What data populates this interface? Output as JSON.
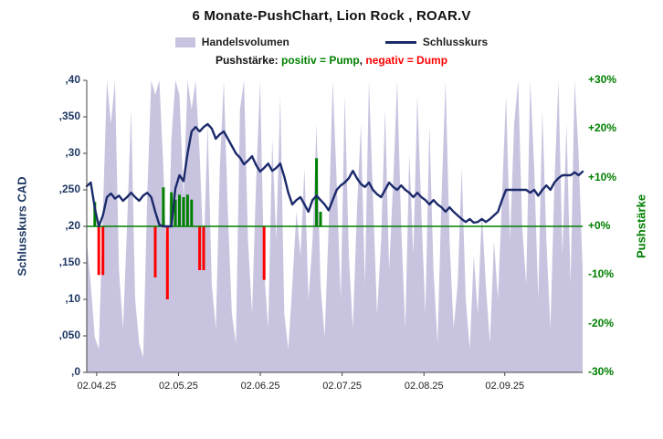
{
  "title": "6 Monate-PushChart,  Lion Rock , ROAR.V",
  "legend": {
    "volume_label": "Handelsvolumen",
    "close_label": "Schlusskurs",
    "push_prefix": "Pushstärke:",
    "push_positive": "positiv = Pump",
    "separator": ",",
    "push_negative": "negativ = Dump"
  },
  "axes": {
    "left_title": "Schlusskurs CAD",
    "right_title": "Pushstärke",
    "left_ticks": [
      ",40",
      ",350",
      ",30",
      ",250",
      ",20",
      ",150",
      ",10",
      ",050",
      ",0"
    ],
    "left_tick_values": [
      0.4,
      0.35,
      0.3,
      0.25,
      0.2,
      0.15,
      0.1,
      0.05,
      0.0
    ],
    "right_ticks": [
      "+30%",
      "+20%",
      "+10%",
      "+0%",
      "-10%",
      "-20%",
      "-30%"
    ],
    "right_tick_values": [
      30,
      20,
      10,
      0,
      -10,
      -20,
      -30
    ],
    "x_ticks": [
      "02.04.25",
      "02.05.25",
      "02.06.25",
      "02.07.25",
      "02.08.25",
      "02.09.25"
    ],
    "x_tick_pos": [
      0.02,
      0.185,
      0.35,
      0.515,
      0.68,
      0.843
    ]
  },
  "colors": {
    "line": "#1b2a6b",
    "axis_text_left": "#1f3864",
    "volume": "#c8c4e0",
    "positive": "#008000",
    "negative": "#ff0000",
    "xtick_text": "#222222"
  },
  "chart_data": [
    {
      "type": "area",
      "name": "Handelsvolumen",
      "yaxis": "hidden",
      "values_relative": [
        0.45,
        0.3,
        0.12,
        0.08,
        0.55,
        1,
        0.85,
        1,
        0.35,
        0.15,
        0.5,
        0.9,
        0.25,
        0.1,
        0.05,
        0.6,
        1,
        0.95,
        1,
        0.7,
        0.3,
        0.8,
        1,
        0.95,
        0.6,
        1,
        0.9,
        1,
        0.75,
        0.4,
        0.85,
        0.3,
        0.15,
        0.7,
        1,
        0.55,
        0.2,
        0.1,
        0.9,
        1,
        0.45,
        0.2,
        0.65,
        1,
        0.35,
        0.15,
        0.8,
        0.45,
        0.95,
        0.2,
        0.08,
        0.3,
        0.55,
        0.4,
        0.7,
        0.25,
        0.45,
        0.85,
        0.3,
        0.12,
        0.5,
        1,
        0.65,
        0.25,
        0.95,
        0.4,
        0.15,
        0.55,
        0.85,
        0.3,
        1,
        0.6,
        0.2,
        0.45,
        0.9,
        0.35,
        0.65,
        1,
        0.5,
        0.15,
        0.75,
        0.4,
        0.95,
        0.55,
        0.2,
        0.85,
        0.35,
        0.1,
        0.6,
        1,
        0.45,
        0.15,
        0.3,
        0.7,
        0.25,
        0.08,
        0.4,
        0.2,
        0.55,
        0.3,
        0.1,
        0.45,
        0.25,
        0.6,
        0.95,
        0.45,
        0.85,
        1,
        0.5,
        0.3,
        1,
        0.7,
        0.25,
        0.9,
        0.45,
        0.15,
        0.65,
        1,
        0.4,
        0.85,
        0.3,
        1,
        0.75,
        0.35
      ]
    },
    {
      "type": "bar",
      "name": "Pushstärke",
      "yaxis": "right",
      "ylabel": "Pushstärke",
      "unit": "%",
      "ylim": [
        -30,
        30
      ],
      "points": [
        {
          "i": 2,
          "pct": 5
        },
        {
          "i": 3,
          "pct": -10
        },
        {
          "i": 4,
          "pct": -10
        },
        {
          "i": 17,
          "pct": -10.5
        },
        {
          "i": 19,
          "pct": 8
        },
        {
          "i": 20,
          "pct": -15
        },
        {
          "i": 21,
          "pct": 7
        },
        {
          "i": 22,
          "pct": 5.5
        },
        {
          "i": 23,
          "pct": 6.5
        },
        {
          "i": 24,
          "pct": 6
        },
        {
          "i": 25,
          "pct": 6.5
        },
        {
          "i": 26,
          "pct": 5.5
        },
        {
          "i": 28,
          "pct": -9
        },
        {
          "i": 29,
          "pct": -9
        },
        {
          "i": 44,
          "pct": -11
        },
        {
          "i": 57,
          "pct": 14
        },
        {
          "i": 58,
          "pct": 3
        }
      ]
    },
    {
      "type": "line",
      "name": "Schlusskurs",
      "yaxis": "left",
      "ylabel": "Schlusskurs CAD",
      "ylim": [
        0,
        0.4
      ],
      "title": "6 Monate-PushChart,  Lion Rock , ROAR.V",
      "x_ticks": [
        "02.04.25",
        "02.05.25",
        "02.06.25",
        "02.07.25",
        "02.08.25",
        "02.09.25"
      ],
      "values": [
        0.255,
        0.26,
        0.225,
        0.2,
        0.215,
        0.24,
        0.245,
        0.238,
        0.242,
        0.235,
        0.24,
        0.246,
        0.24,
        0.235,
        0.242,
        0.246,
        0.24,
        0.22,
        0.202,
        0.2,
        0.2,
        0.2,
        0.252,
        0.27,
        0.262,
        0.3,
        0.33,
        0.336,
        0.33,
        0.336,
        0.34,
        0.334,
        0.32,
        0.326,
        0.33,
        0.32,
        0.31,
        0.3,
        0.294,
        0.285,
        0.29,
        0.296,
        0.284,
        0.275,
        0.28,
        0.286,
        0.276,
        0.28,
        0.286,
        0.268,
        0.246,
        0.23,
        0.236,
        0.24,
        0.23,
        0.22,
        0.236,
        0.242,
        0.236,
        0.23,
        0.222,
        0.236,
        0.25,
        0.256,
        0.26,
        0.266,
        0.276,
        0.266,
        0.258,
        0.254,
        0.26,
        0.25,
        0.244,
        0.24,
        0.25,
        0.26,
        0.254,
        0.25,
        0.256,
        0.25,
        0.246,
        0.24,
        0.246,
        0.24,
        0.236,
        0.23,
        0.236,
        0.23,
        0.226,
        0.22,
        0.226,
        0.22,
        0.215,
        0.21,
        0.206,
        0.21,
        0.205,
        0.206,
        0.21,
        0.206,
        0.21,
        0.215,
        0.22,
        0.236,
        0.25,
        0.25,
        0.25,
        0.25,
        0.25,
        0.25,
        0.246,
        0.25,
        0.242,
        0.25,
        0.256,
        0.25,
        0.26,
        0.266,
        0.27,
        0.27,
        0.27,
        0.274,
        0.27,
        0.275
      ]
    }
  ]
}
